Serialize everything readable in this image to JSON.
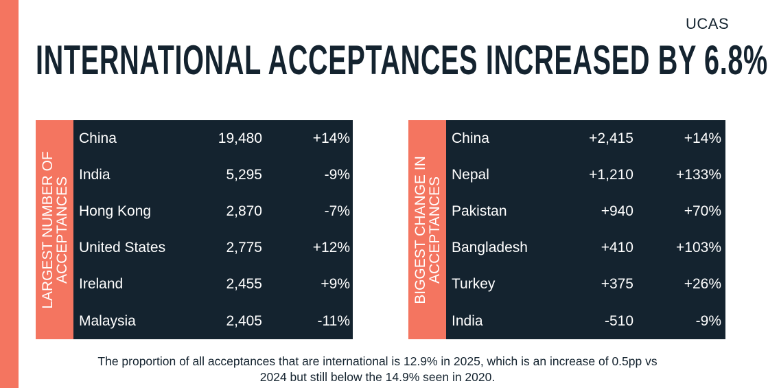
{
  "logo": "UCAS",
  "title": "INTERNATIONAL ACCEPTANCES INCREASED BY 6.8%",
  "largest": {
    "label": "LARGEST NUMBER OF ACCEPTANCES",
    "rows": [
      {
        "country": "China",
        "value": "19,480",
        "change": "+14%"
      },
      {
        "country": "India",
        "value": "5,295",
        "change": "-9%"
      },
      {
        "country": "Hong Kong",
        "value": "2,870",
        "change": "-7%"
      },
      {
        "country": "United States",
        "value": "2,775",
        "change": "+12%"
      },
      {
        "country": "Ireland",
        "value": "2,455",
        "change": "+9%"
      },
      {
        "country": "Malaysia",
        "value": "2,405",
        "change": "-11%"
      }
    ]
  },
  "biggest": {
    "label": "BIGGEST CHANGE IN ACCEPTANCES",
    "rows": [
      {
        "country": "China",
        "value": "+2,415",
        "change": "+14%"
      },
      {
        "country": "Nepal",
        "value": "+1,210",
        "change": "+133%"
      },
      {
        "country": "Pakistan",
        "value": "+940",
        "change": "+70%"
      },
      {
        "country": "Bangladesh",
        "value": "+410",
        "change": "+103%"
      },
      {
        "country": "Turkey",
        "value": "+375",
        "change": "+26%"
      },
      {
        "country": "India",
        "value": "-510",
        "change": "-9%"
      }
    ]
  },
  "caption": "The proportion of all acceptances that are international is 12.9% in 2025, which is an increase of 0.5pp vs 2024 but still below the 14.9% seen in 2020.",
  "colors": {
    "accent": "#f47560",
    "dark": "#14232f"
  }
}
